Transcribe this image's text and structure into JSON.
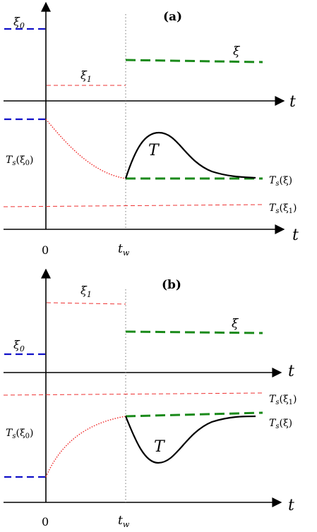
{
  "panels": [
    {
      "label": "(a)",
      "xi0": "ξ",
      "xi0_sub": "0",
      "xi1": "ξ",
      "xi1_sub": "1",
      "xi": "ξ",
      "t_top": "t",
      "t_bottom": "t",
      "curve_label": "T",
      "ts_xi0": "T",
      "ts_xi0_sub": "s",
      "ts_xi0_arg": "(ξ",
      "ts_xi0_arg_sub": "0",
      "ts_xi0_close": ")",
      "ts_xi": "T",
      "ts_xi_sub": "s",
      "ts_xi_arg": "(ξ)",
      "ts_xi1": "T",
      "ts_xi1_sub": "s",
      "ts_xi1_arg": "(ξ",
      "ts_xi1_arg_sub": "1",
      "ts_xi1_close": ")",
      "zero": "0",
      "tw": "t",
      "tw_sub": "w"
    },
    {
      "label": "(b)",
      "xi0": "ξ",
      "xi0_sub": "0",
      "xi1": "ξ",
      "xi1_sub": "1",
      "xi": "ξ",
      "t_top": "t",
      "t_bottom": "t",
      "curve_label": "T",
      "ts_xi0": "T",
      "ts_xi0_sub": "s",
      "ts_xi0_arg": "(ξ",
      "ts_xi0_arg_sub": "0",
      "ts_xi0_close": ")",
      "ts_xi": "T",
      "ts_xi_sub": "s",
      "ts_xi_arg": "(ξ)",
      "ts_xi1": "T",
      "ts_xi1_sub": "s",
      "ts_xi1_arg": "(ξ",
      "ts_xi1_arg_sub": "1",
      "ts_xi1_close": ")",
      "zero": "0",
      "tw": "t",
      "tw_sub": "w"
    }
  ],
  "colors": {
    "xi0_line": "#1010c8",
    "xi1_line": "#ee3333",
    "xi_line": "#1a8a1a",
    "curve": "#000000",
    "guide": "#777777"
  }
}
